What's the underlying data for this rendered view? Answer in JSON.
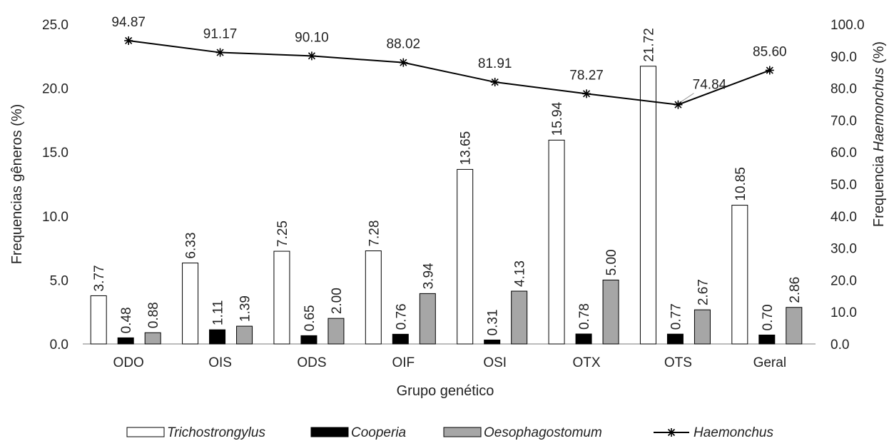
{
  "chart_data": {
    "type": "bar",
    "title": "",
    "xlabel": "Grupo genético",
    "ylabel": "Frequencias gêneros (%)",
    "ylabel_right_prefix": "Frequencia ",
    "ylabel_right_italic": "Haemonchus",
    "ylabel_right_suffix": " (%)",
    "categories": [
      "ODO",
      "OIS",
      "ODS",
      "OIF",
      "OSI",
      "OTX",
      "OTS",
      "Geral"
    ],
    "ylim": [
      0,
      25
    ],
    "y_ticks": [
      "0.0",
      "5.0",
      "10.0",
      "15.0",
      "20.0",
      "25.0"
    ],
    "y2lim": [
      0,
      100
    ],
    "y2_ticks": [
      "0.0",
      "10.0",
      "20.0",
      "30.0",
      "40.0",
      "50.0",
      "60.0",
      "70.0",
      "80.0",
      "90.0",
      "100.0"
    ],
    "series": [
      {
        "name": "Trichostrongylus",
        "type": "bar",
        "axis": "left",
        "color": "#ffffff",
        "values": [
          3.77,
          6.33,
          7.25,
          7.28,
          13.65,
          15.94,
          21.72,
          10.85
        ],
        "labels": [
          "3.77",
          "6.33",
          "7.25",
          "7.28",
          "13.65",
          "15.94",
          "21.72",
          "10.85"
        ]
      },
      {
        "name": "Cooperia",
        "type": "bar",
        "axis": "left",
        "color": "#000000",
        "values": [
          0.48,
          1.11,
          0.65,
          0.76,
          0.31,
          0.78,
          0.77,
          0.7
        ],
        "labels": [
          "0.48",
          "1.11",
          "0.65",
          "0.76",
          "0.31",
          "0.78",
          "0.77",
          "0.70"
        ]
      },
      {
        "name": "Oesophagostomum",
        "type": "bar",
        "axis": "left",
        "color": "#a6a6a6",
        "values": [
          0.88,
          1.39,
          2.0,
          3.94,
          4.13,
          5.0,
          2.67,
          2.86
        ],
        "labels": [
          "0.88",
          "1.39",
          "2.00",
          "3.94",
          "4.13",
          "5.00",
          "2.67",
          "2.86"
        ]
      },
      {
        "name": "Haemonchus",
        "type": "line",
        "axis": "right",
        "color": "#000000",
        "values": [
          94.87,
          91.17,
          90.1,
          88.02,
          81.91,
          78.27,
          74.84,
          85.6
        ],
        "labels": [
          "94.87",
          "91.17",
          "90.10",
          "88.02",
          "81.91",
          "78.27",
          "74.84",
          "85.60"
        ]
      }
    ],
    "legend_position": "bottom",
    "grid": false
  }
}
